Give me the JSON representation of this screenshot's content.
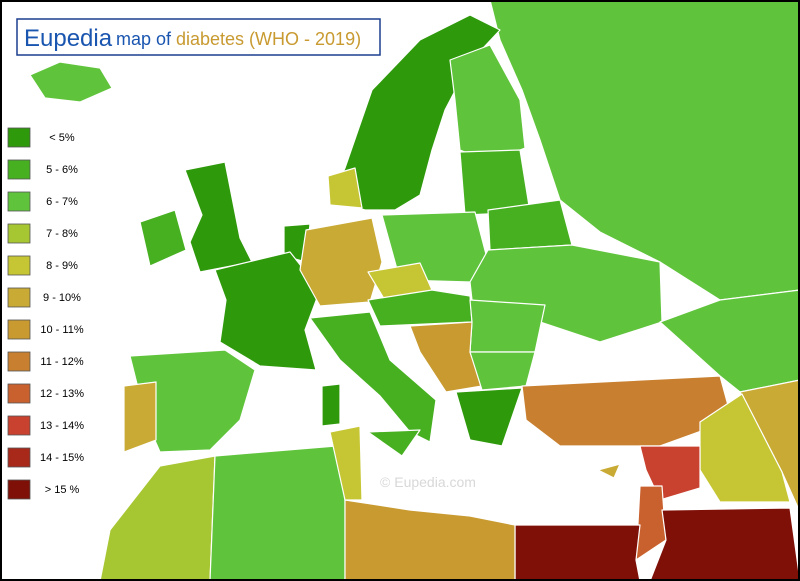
{
  "header": {
    "brand": "Eupedia",
    "title_prefix": "map of",
    "title_subject": "diabetes (WHO - 2019)"
  },
  "legend": [
    {
      "label": "< 5%",
      "color": "#2f990c"
    },
    {
      "label": "5 - 6%",
      "color": "#46b021"
    },
    {
      "label": "6 - 7%",
      "color": "#5fc43b"
    },
    {
      "label": "7 - 8%",
      "color": "#a6c632"
    },
    {
      "label": "8 - 9%",
      "color": "#c6c634"
    },
    {
      "label": "9 - 10%",
      "color": "#c8aa34"
    },
    {
      "label": "10 - 11%",
      "color": "#c89a30"
    },
    {
      "label": "11 - 12%",
      "color": "#c88030"
    },
    {
      "label": "12 - 13%",
      "color": "#c9612f"
    },
    {
      "label": "13 - 14%",
      "color": "#c9412f"
    },
    {
      "label": "14 - 15%",
      "color": "#a8281a"
    },
    {
      "label": "> 15 %",
      "color": "#7f1008"
    }
  ],
  "watermark": "© Eupedia.com"
}
